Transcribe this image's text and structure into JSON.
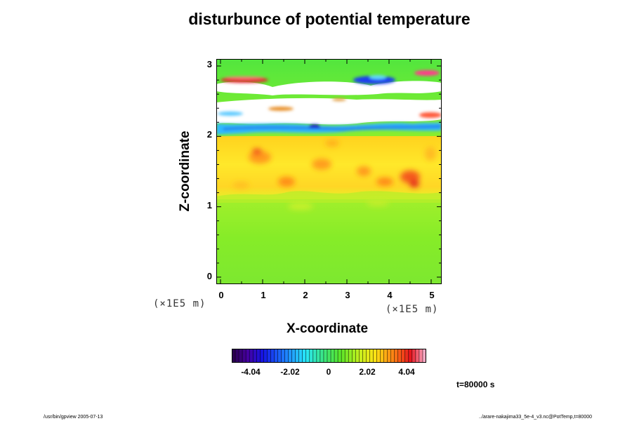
{
  "header": {
    "title": "disturbunce of potential temperature"
  },
  "chart_data": {
    "type": "heatmap",
    "title": "disturbunce of potential temperature",
    "xlabel": "X-coordinate",
    "ylabel": "Z-coordinate",
    "x_unit": "(×1E5 m)",
    "y_unit": "(×1E5 m)",
    "xlim": [
      -0.1,
      5.25
    ],
    "ylim": [
      -0.1,
      3.1
    ],
    "x_ticks": [
      {
        "value": 0,
        "label": "0"
      },
      {
        "value": 1,
        "label": "1"
      },
      {
        "value": 2,
        "label": "2"
      },
      {
        "value": 3,
        "label": "3"
      },
      {
        "value": 4,
        "label": "4"
      },
      {
        "value": 5,
        "label": "5"
      }
    ],
    "y_ticks": [
      {
        "value": 0,
        "label": "0"
      },
      {
        "value": 1,
        "label": "1"
      },
      {
        "value": 2,
        "label": "2"
      },
      {
        "value": 3,
        "label": "3"
      }
    ],
    "colorbar": {
      "min": -5.05,
      "max": 5.05,
      "ticks": [
        {
          "value": -4.04,
          "label": "-4.04"
        },
        {
          "value": -2.02,
          "label": "-2.02"
        },
        {
          "value": 0,
          "label": "0"
        },
        {
          "value": 2.02,
          "label": "2.02"
        },
        {
          "value": 4.04,
          "label": "4.04"
        }
      ],
      "colormap": "rainbow (purple-blue-cyan-green-yellow-red-pink)"
    },
    "regions": [
      {
        "z_range": [
          0,
          1.1
        ],
        "approx_value": 0.5,
        "color": "green"
      },
      {
        "z_range": [
          1.1,
          2.0
        ],
        "approx_value": 2.3,
        "color": "yellow-orange"
      },
      {
        "z_range": [
          2.0,
          3.0
        ],
        "approx_value": 0.3,
        "color": "green with white / blue / red bands"
      }
    ],
    "annotation": "t=80000 s"
  },
  "time_label": "t=80000 s",
  "footer": {
    "left": "/usr/bin/gpview 2005-07-13",
    "right": "../arare-nakajima33_5e-4_v3.nc@PotTemp,t=80000"
  },
  "colors": {
    "background": "#ffffff",
    "frame": "#000000"
  }
}
